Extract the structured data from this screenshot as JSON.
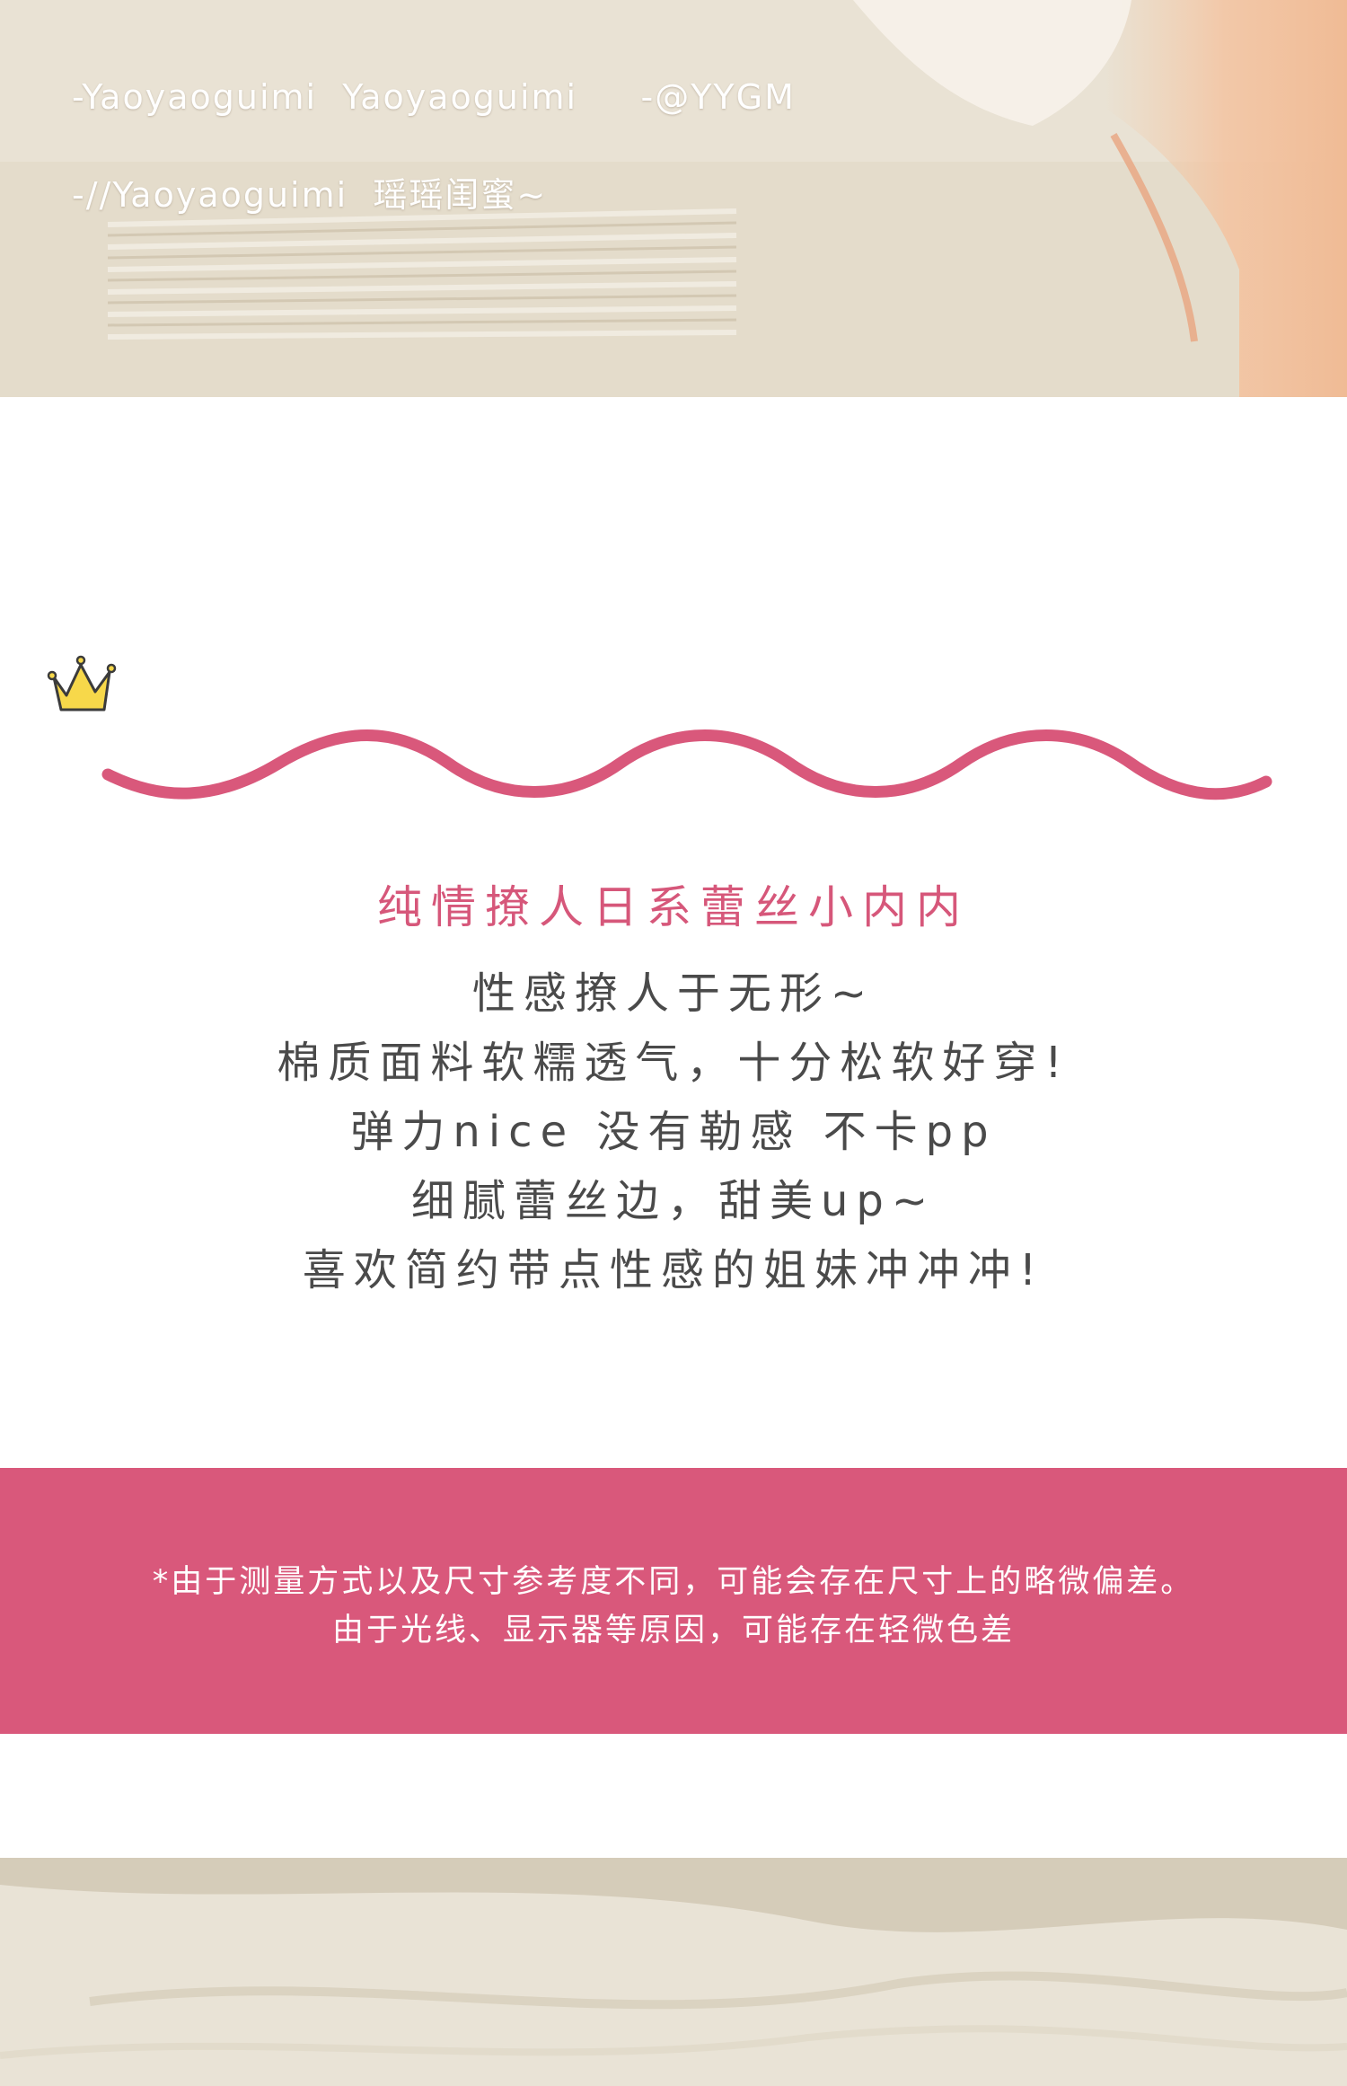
{
  "watermark": {
    "line1": "-Yaoyaoguimi  Yaoyaoguimi     -@YYGM",
    "line2": "-//Yaoyaoguimi  瑶瑶闺蜜~"
  },
  "product": {
    "subtitle": "纯情撩人日系蕾丝小内内",
    "description": [
      "性感撩人于无形~",
      "棉质面料软糯透气，十分松软好穿!",
      "弹力nice 没有勒感 不卡pp",
      "细腻蕾丝边，甜美up~",
      "喜欢简约带点性感的姐妹冲冲冲!"
    ]
  },
  "notice": {
    "line1": "*由于测量方式以及尺寸参考度不同，可能会存在尺寸上的略微偏差。",
    "line2": "由于光线、显示器等原因，可能存在轻微色差"
  },
  "colors": {
    "accent_pink": "#d9587b",
    "wave_pink": "#d9587b",
    "crown_yellow": "#f7d84a",
    "text_gray": "#4a4a4a"
  },
  "icons": {
    "crown": "crown-icon",
    "wave": "wave-divider"
  }
}
